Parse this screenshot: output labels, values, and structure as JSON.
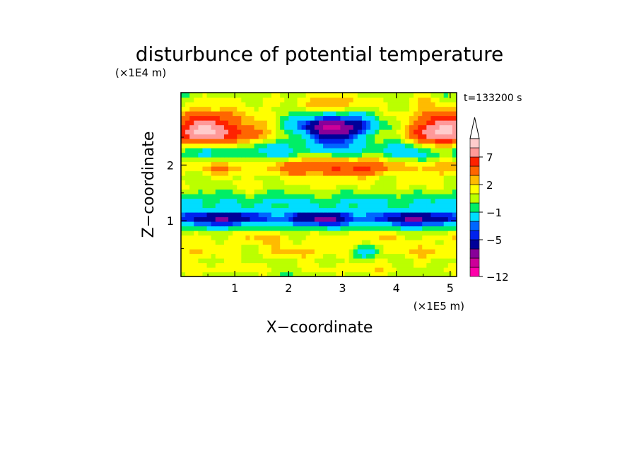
{
  "chart_data": {
    "type": "heatmap",
    "title": "disturbunce of potential temperature",
    "xlabel": "X−coordinate",
    "ylabel": "Z−coordinate",
    "x_unit": "(×1E5 m)",
    "y_unit": "(×1E4 m)",
    "annotation": "t=133200 s",
    "xlim": [
      0,
      5.12
    ],
    "ylim": [
      0,
      3.3
    ],
    "x_ticks": [
      {
        "value": 1,
        "label": "1"
      },
      {
        "value": 2,
        "label": "2"
      },
      {
        "value": 3,
        "label": "3"
      },
      {
        "value": 4,
        "label": "4"
      },
      {
        "value": 5,
        "label": "5"
      }
    ],
    "y_ticks": [
      {
        "value": 1,
        "label": "1"
      },
      {
        "value": 2,
        "label": "2"
      }
    ],
    "colorbar": {
      "levels": [
        -12,
        -11,
        -9,
        -7,
        -5,
        -4,
        -3,
        -1,
        0,
        1,
        2,
        3,
        5,
        7,
        9,
        11
      ],
      "colors": [
        "#ff00aa",
        "#cc0099",
        "#880099",
        "#000099",
        "#0022ee",
        "#0066ff",
        "#00ddff",
        "#00ee66",
        "#bbff00",
        "#ffff00",
        "#ffbb00",
        "#ff6600",
        "#ff2200",
        "#ff9999",
        "#ffcccc"
      ],
      "tick_labels": [
        {
          "value": -12,
          "label": "−12"
        },
        {
          "value": -5,
          "label": "−5"
        },
        {
          "value": -1,
          "label": "−1"
        },
        {
          "value": 2,
          "label": "2"
        },
        {
          "value": 7,
          "label": "7"
        }
      ],
      "extend": "max"
    },
    "field": {
      "x_range": [
        0,
        5.12
      ],
      "z_range": [
        0,
        3.3
      ],
      "nx": 64,
      "nz": 40,
      "layers": [
        {
          "z": 0.15,
          "amp": 1.2
        },
        {
          "z": 0.45,
          "amp": 1.6
        },
        {
          "z": 0.7,
          "amp": 1.5
        },
        {
          "z": 1.05,
          "amp": -5.5
        },
        {
          "z": 1.35,
          "amp": -1.0
        },
        {
          "z": 1.65,
          "amp": 1.0
        },
        {
          "z": 1.95,
          "amp": 2.2
        },
        {
          "z": 2.25,
          "amp": -1.5
        },
        {
          "z": 2.55,
          "amp": 2.0
        },
        {
          "z": 2.9,
          "amp": 0.8
        },
        {
          "z": 3.15,
          "amp": 1.0
        }
      ],
      "blobs": [
        {
          "x": 0.5,
          "z": 2.65,
          "sx": 0.55,
          "sz": 0.28,
          "amp": 8.5
        },
        {
          "x": 4.95,
          "z": 2.65,
          "sx": 0.45,
          "sz": 0.28,
          "amp": 7.0
        },
        {
          "x": 2.85,
          "z": 2.65,
          "sx": 0.7,
          "sz": 0.25,
          "amp": -10.5
        },
        {
          "x": 2.9,
          "z": 2.0,
          "sx": 0.9,
          "sz": 0.2,
          "amp": 3.5
        },
        {
          "x": 2.8,
          "z": 3.1,
          "sx": 0.4,
          "sz": 0.2,
          "amp": 2.5
        },
        {
          "x": 4.6,
          "z": 2.7,
          "sx": 0.5,
          "sz": 0.3,
          "amp": 2.5
        },
        {
          "x": 1.4,
          "z": 2.7,
          "sx": 0.4,
          "sz": 0.25,
          "amp": 1.5
        },
        {
          "x": 3.4,
          "z": 0.45,
          "sx": 0.25,
          "sz": 0.1,
          "amp": -3.5
        }
      ]
    }
  }
}
